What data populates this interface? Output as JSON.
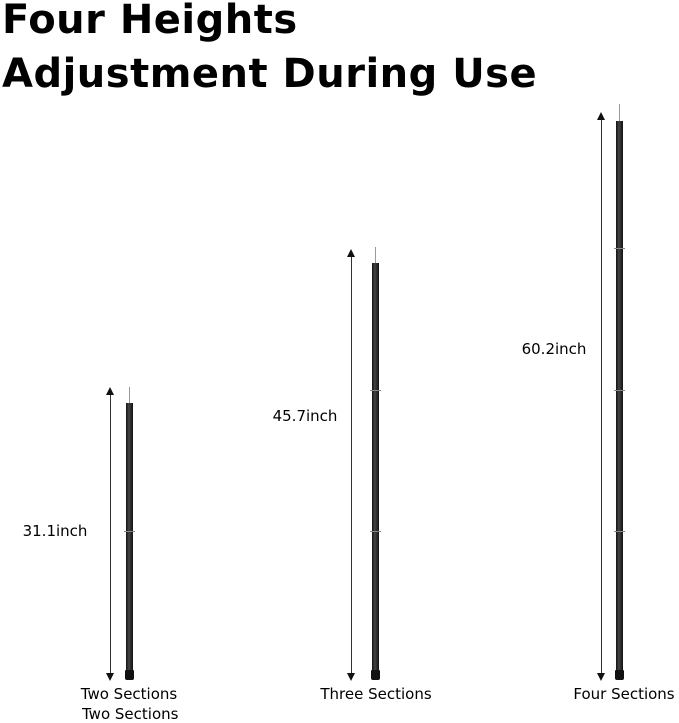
{
  "title": {
    "line1": "Four Heights",
    "line2": "Adjustment During Use"
  },
  "poles": [
    {
      "height_label": "31.1inch",
      "sections_label": "Two Sections",
      "height_inch": 31.1,
      "sections": 2
    },
    {
      "height_label": "45.7inch",
      "sections_label": "Three Sections",
      "height_inch": 45.7,
      "sections": 3
    },
    {
      "height_label": "60.2inch",
      "sections_label": "Four Sections",
      "height_inch": 60.2,
      "sections": 4
    }
  ],
  "duplicate_caption": "Two Sections",
  "colors": {
    "pole": "#111111",
    "text": "#000000",
    "background": "#ffffff"
  }
}
